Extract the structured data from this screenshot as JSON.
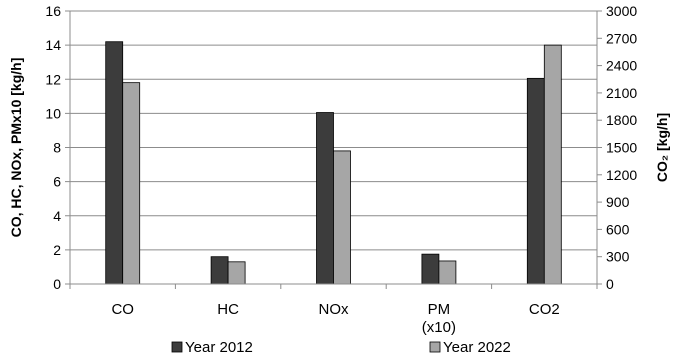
{
  "chart_data": {
    "type": "bar",
    "categories": [
      "CO",
      "HC",
      "NOx",
      "PM (x10)",
      "CO2"
    ],
    "category_labels": [
      [
        "CO"
      ],
      [
        "HC"
      ],
      [
        "NOx"
      ],
      [
        "PM",
        "(x10)"
      ],
      [
        "CO2"
      ]
    ],
    "series": [
      {
        "name": "Year 2012",
        "color": "#3c3c3c",
        "values": [
          14.2,
          1.6,
          10.05,
          1.75,
          2260
        ]
      },
      {
        "name": "Year 2022",
        "color": "#a6a6a6",
        "values": [
          11.8,
          1.3,
          7.8,
          1.35,
          2625
        ]
      }
    ],
    "secondary_axis_categories": [
      "CO2"
    ],
    "ylabel": "CO, HC, NOx, PMx10 [kg/h]",
    "y2label": "CO₂ [kg/h]",
    "ylim": [
      0,
      16
    ],
    "y2lim": [
      0,
      3000
    ],
    "yticks": [
      0,
      2,
      4,
      6,
      8,
      10,
      12,
      14,
      16
    ],
    "y2ticks": [
      0,
      300,
      600,
      900,
      1200,
      1500,
      1800,
      2100,
      2400,
      2700,
      3000
    ],
    "grid": true,
    "legend_position": "bottom"
  }
}
